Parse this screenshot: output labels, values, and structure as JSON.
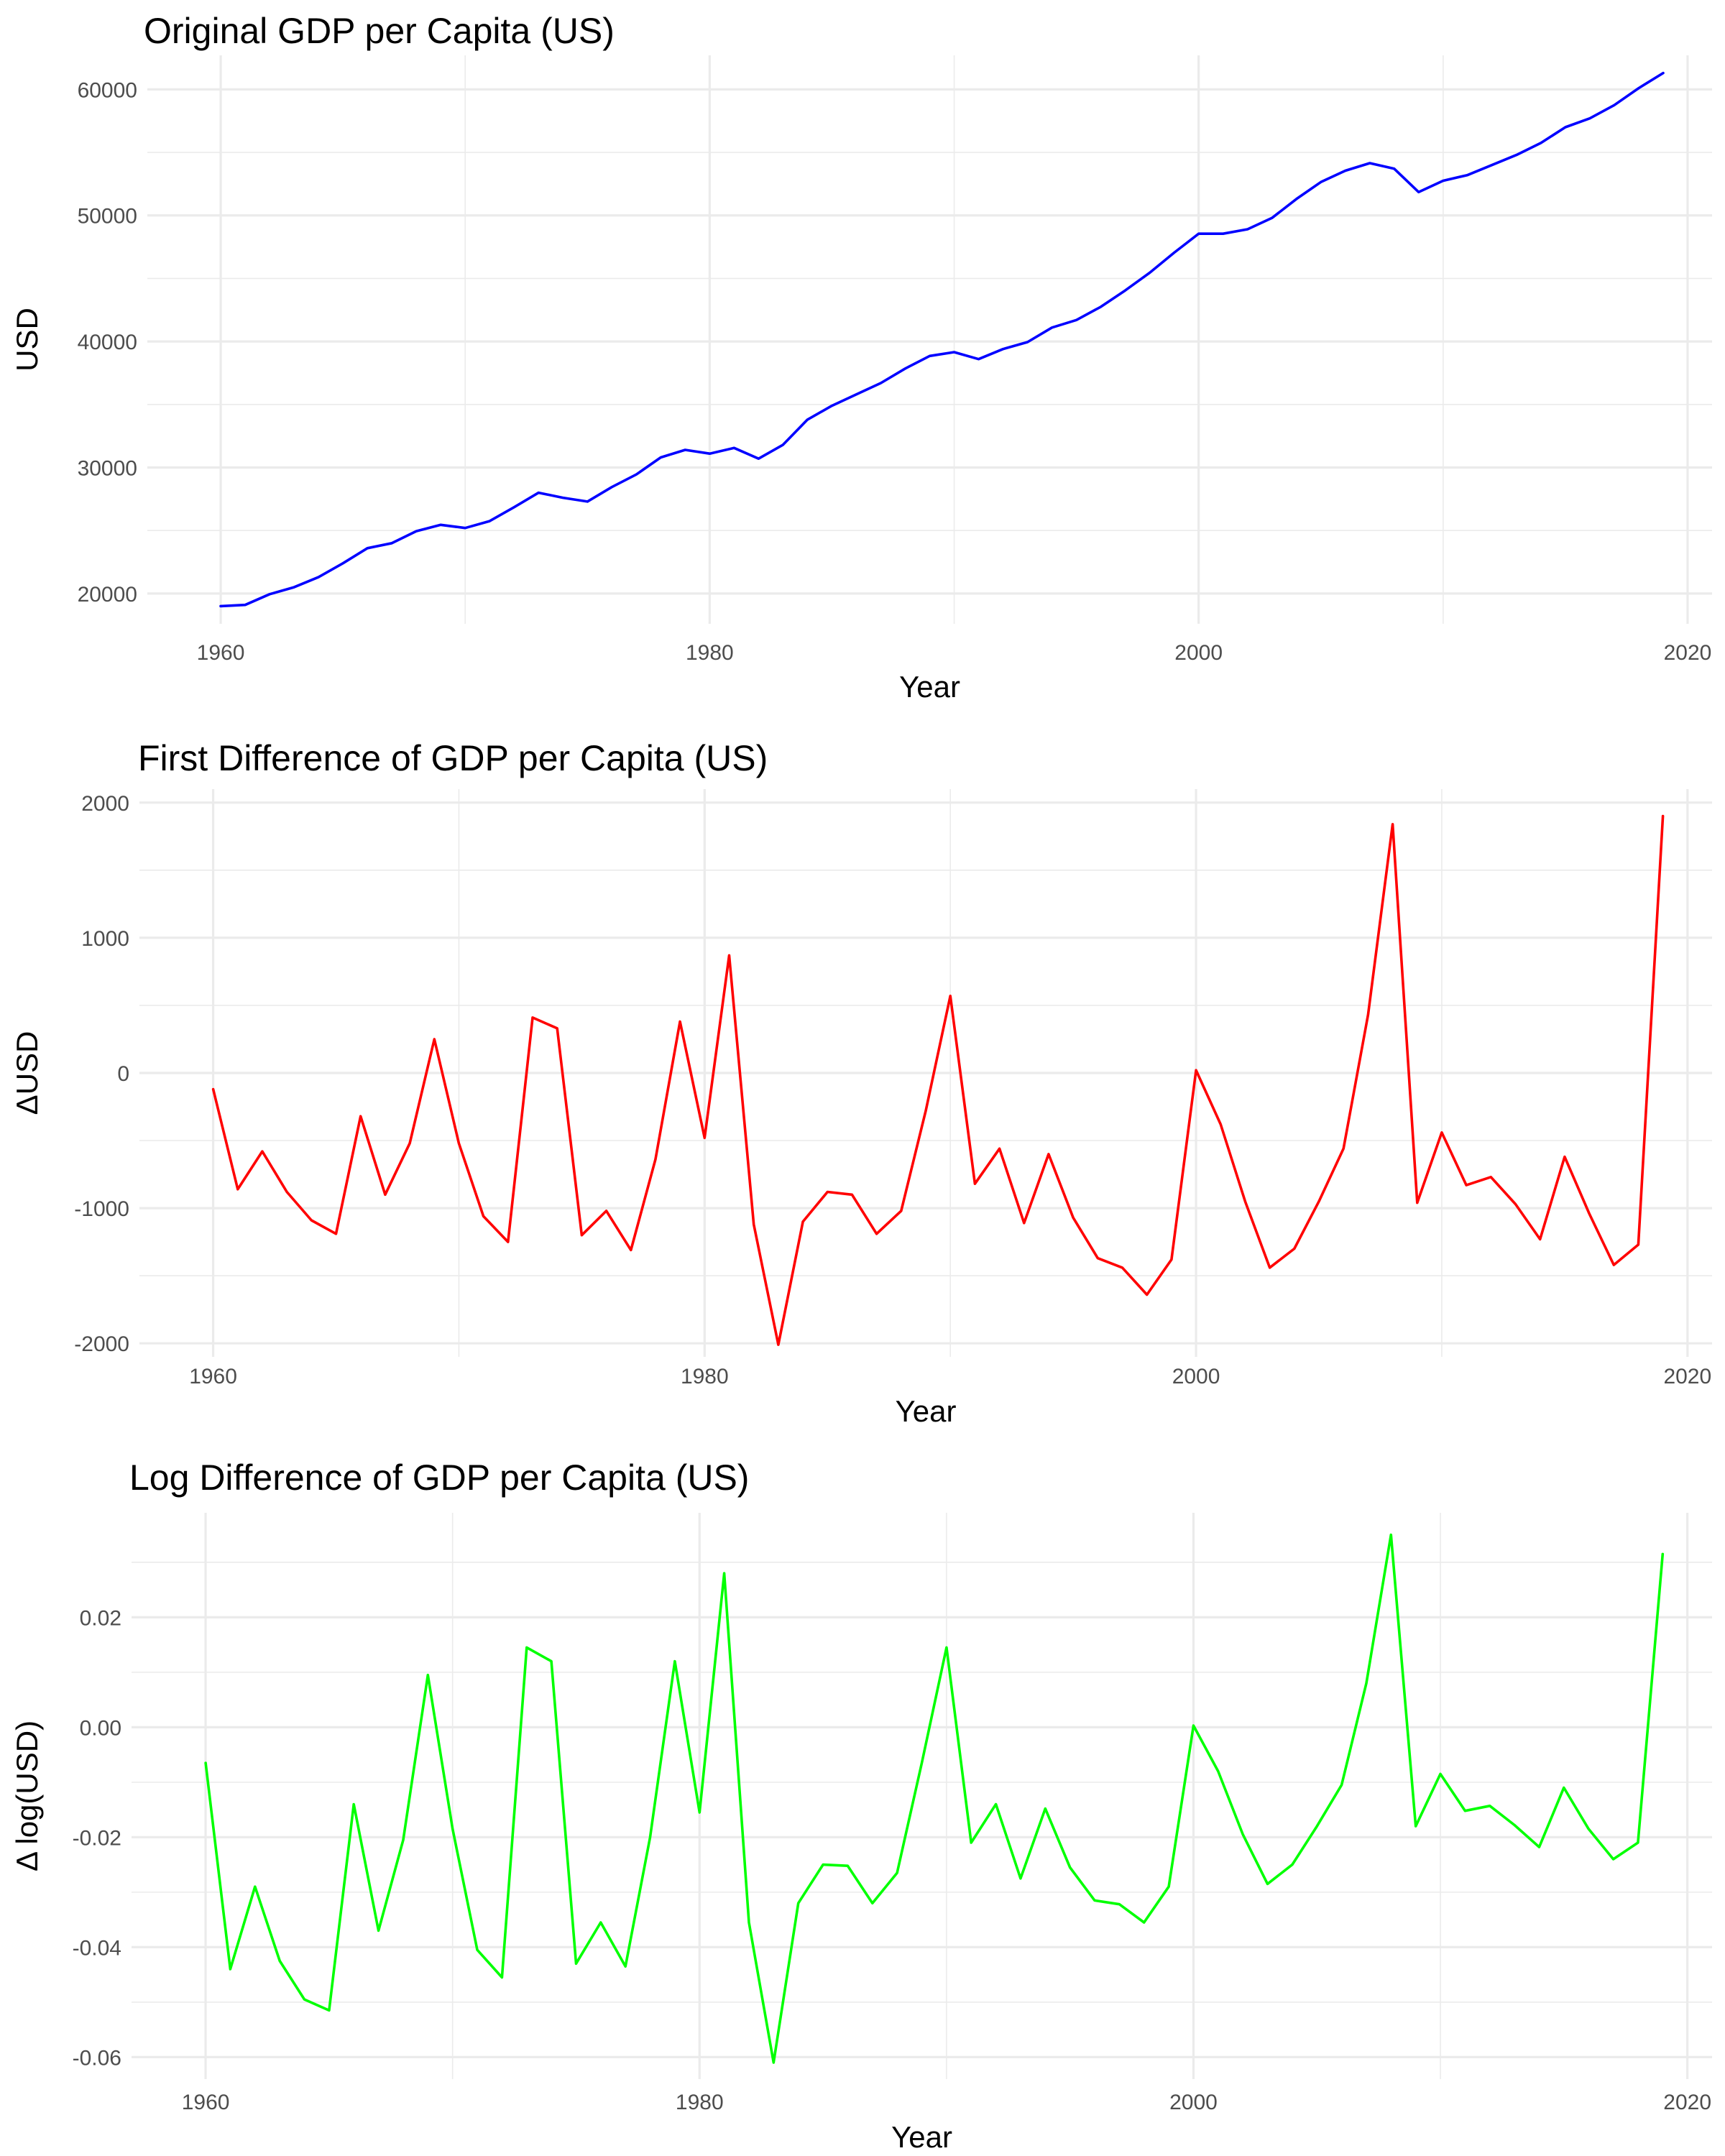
{
  "chart_data": [
    {
      "type": "line",
      "title": "Original GDP per Capita (US)",
      "xlabel": "Year",
      "ylabel": "USD",
      "xlim": [
        1957,
        2021
      ],
      "ylim": [
        17600,
        62700
      ],
      "xticks": [
        1960,
        1980,
        2000,
        2020
      ],
      "xtick_labels": [
        "1960",
        "1980",
        "2000",
        "2020"
      ],
      "yticks": [
        20000,
        30000,
        40000,
        50000,
        60000
      ],
      "ytick_labels": [
        "20000",
        "30000",
        "40000",
        "50000",
        "60000"
      ],
      "grid": true,
      "color": "#0000ff",
      "x": [
        1960,
        1961,
        1962,
        1963,
        1964,
        1965,
        1966,
        1967,
        1968,
        1969,
        1970,
        1971,
        1972,
        1973,
        1974,
        1975,
        1976,
        1977,
        1978,
        1979,
        1980,
        1981,
        1982,
        1983,
        1984,
        1985,
        1986,
        1987,
        1988,
        1989,
        1990,
        1991,
        1992,
        1993,
        1994,
        1995,
        1996,
        1997,
        1998,
        1999,
        2000,
        2001,
        2002,
        2003,
        2004,
        2005,
        2006,
        2007,
        2008,
        2009,
        2010,
        2011,
        2012,
        2013,
        2014,
        2015,
        2016,
        2017,
        2018,
        2019
      ],
      "y": [
        19000,
        19100,
        19950,
        20500,
        21300,
        22400,
        23600,
        24000,
        24950,
        25450,
        25200,
        25750,
        26850,
        28000,
        27600,
        27300,
        28450,
        29450,
        30800,
        31400,
        31100,
        31550,
        30700,
        31800,
        33800,
        34900,
        35800,
        36700,
        37850,
        38850,
        39150,
        38600,
        39400,
        39950,
        41100,
        41700,
        42750,
        44050,
        45450,
        47050,
        48550,
        48550,
        48900,
        49800,
        51300,
        52650,
        53550,
        54150,
        53700,
        51850,
        52750,
        53200,
        54000,
        54800,
        55750,
        57000,
        57700,
        58750,
        60100,
        61300
      ]
    },
    {
      "type": "line",
      "title": "First Difference of GDP per Capita (US)",
      "xlabel": "Year",
      "ylabel": "ΔUSD",
      "xlim": [
        1957,
        2021
      ],
      "ylim": [
        -2100,
        2100
      ],
      "xticks": [
        1960,
        1980,
        2000,
        2020
      ],
      "xtick_labels": [
        "1960",
        "1980",
        "2000",
        "2020"
      ],
      "yticks": [
        -2000,
        -1000,
        0,
        1000,
        2000
      ],
      "ytick_labels": [
        "-2000",
        "-1000",
        "0",
        "1000",
        "2000"
      ],
      "grid": true,
      "color": "#ff0000",
      "x": [
        1960,
        1961,
        1962,
        1963,
        1964,
        1965,
        1966,
        1967,
        1968,
        1969,
        1970,
        1971,
        1972,
        1973,
        1974,
        1975,
        1976,
        1977,
        1978,
        1979,
        1980,
        1981,
        1982,
        1983,
        1984,
        1985,
        1986,
        1987,
        1988,
        1989,
        1990,
        1991,
        1992,
        1993,
        1994,
        1995,
        1996,
        1997,
        1998,
        1999,
        2000,
        2001,
        2002,
        2003,
        2004,
        2005,
        2006,
        2007,
        2008,
        2009,
        2010,
        2011,
        2012,
        2013,
        2014,
        2015,
        2016,
        2017,
        2018,
        2019
      ],
      "y": [
        -120,
        -860,
        -580,
        -880,
        -1090,
        -1190,
        -320,
        -900,
        -520,
        250,
        -520,
        -1060,
        -1250,
        410,
        330,
        -1200,
        -1020,
        -1310,
        -640,
        380,
        -480,
        870,
        -1120,
        -2010,
        -1100,
        -880,
        -900,
        -1190,
        -1020,
        -280,
        570,
        -820,
        -560,
        -1110,
        -600,
        -1070,
        -1370,
        -1440,
        -1640,
        -1380,
        20,
        -380,
        -950,
        -1440,
        -1300,
        -950,
        -560,
        430,
        1840,
        -960,
        -440,
        -830,
        -770,
        -970,
        -1230,
        -620,
        -1040,
        -1420,
        -1270,
        1900
      ]
    },
    {
      "type": "line",
      "title": "Log Difference of GDP per Capita (US)",
      "xlabel": "Year",
      "ylabel": "Δ log(USD)",
      "xlim": [
        1957,
        2021
      ],
      "ylim": [
        -0.064,
        0.039
      ],
      "xticks": [
        1960,
        1980,
        2000,
        2020
      ],
      "xtick_labels": [
        "1960",
        "1980",
        "2000",
        "2020"
      ],
      "yticks": [
        -0.06,
        -0.04,
        -0.02,
        0.0,
        0.02
      ],
      "ytick_labels": [
        "-0.06",
        "-0.04",
        "-0.02",
        "0.00",
        "0.02"
      ],
      "grid": true,
      "color": "#00ff00",
      "x": [
        1960,
        1961,
        1962,
        1963,
        1964,
        1965,
        1966,
        1967,
        1968,
        1969,
        1970,
        1971,
        1972,
        1973,
        1974,
        1975,
        1976,
        1977,
        1978,
        1979,
        1980,
        1981,
        1982,
        1983,
        1984,
        1985,
        1986,
        1987,
        1988,
        1989,
        1990,
        1991,
        1992,
        1993,
        1994,
        1995,
        1996,
        1997,
        1998,
        1999,
        2000,
        2001,
        2002,
        2003,
        2004,
        2005,
        2006,
        2007,
        2008,
        2009,
        2010,
        2011,
        2012,
        2013,
        2014,
        2015,
        2016,
        2017,
        2018,
        2019
      ],
      "y": [
        -0.0065,
        -0.044,
        -0.029,
        -0.0425,
        -0.0495,
        -0.0515,
        -0.014,
        -0.037,
        -0.0205,
        0.0095,
        -0.0185,
        -0.0405,
        -0.0455,
        0.0145,
        0.012,
        -0.043,
        -0.0355,
        -0.0435,
        -0.02,
        0.012,
        -0.0155,
        0.028,
        -0.0355,
        -0.061,
        -0.032,
        -0.025,
        -0.0252,
        -0.032,
        -0.0265,
        -0.0065,
        0.0145,
        -0.021,
        -0.014,
        -0.0275,
        -0.0148,
        -0.0255,
        -0.0315,
        -0.0322,
        -0.0355,
        -0.029,
        0.0003,
        -0.008,
        -0.0195,
        -0.0285,
        -0.025,
        -0.018,
        -0.0105,
        0.008,
        0.035,
        -0.018,
        -0.0085,
        -0.0152,
        -0.0143,
        -0.0178,
        -0.0218,
        -0.011,
        -0.0185,
        -0.024,
        -0.021,
        0.0315
      ]
    }
  ]
}
